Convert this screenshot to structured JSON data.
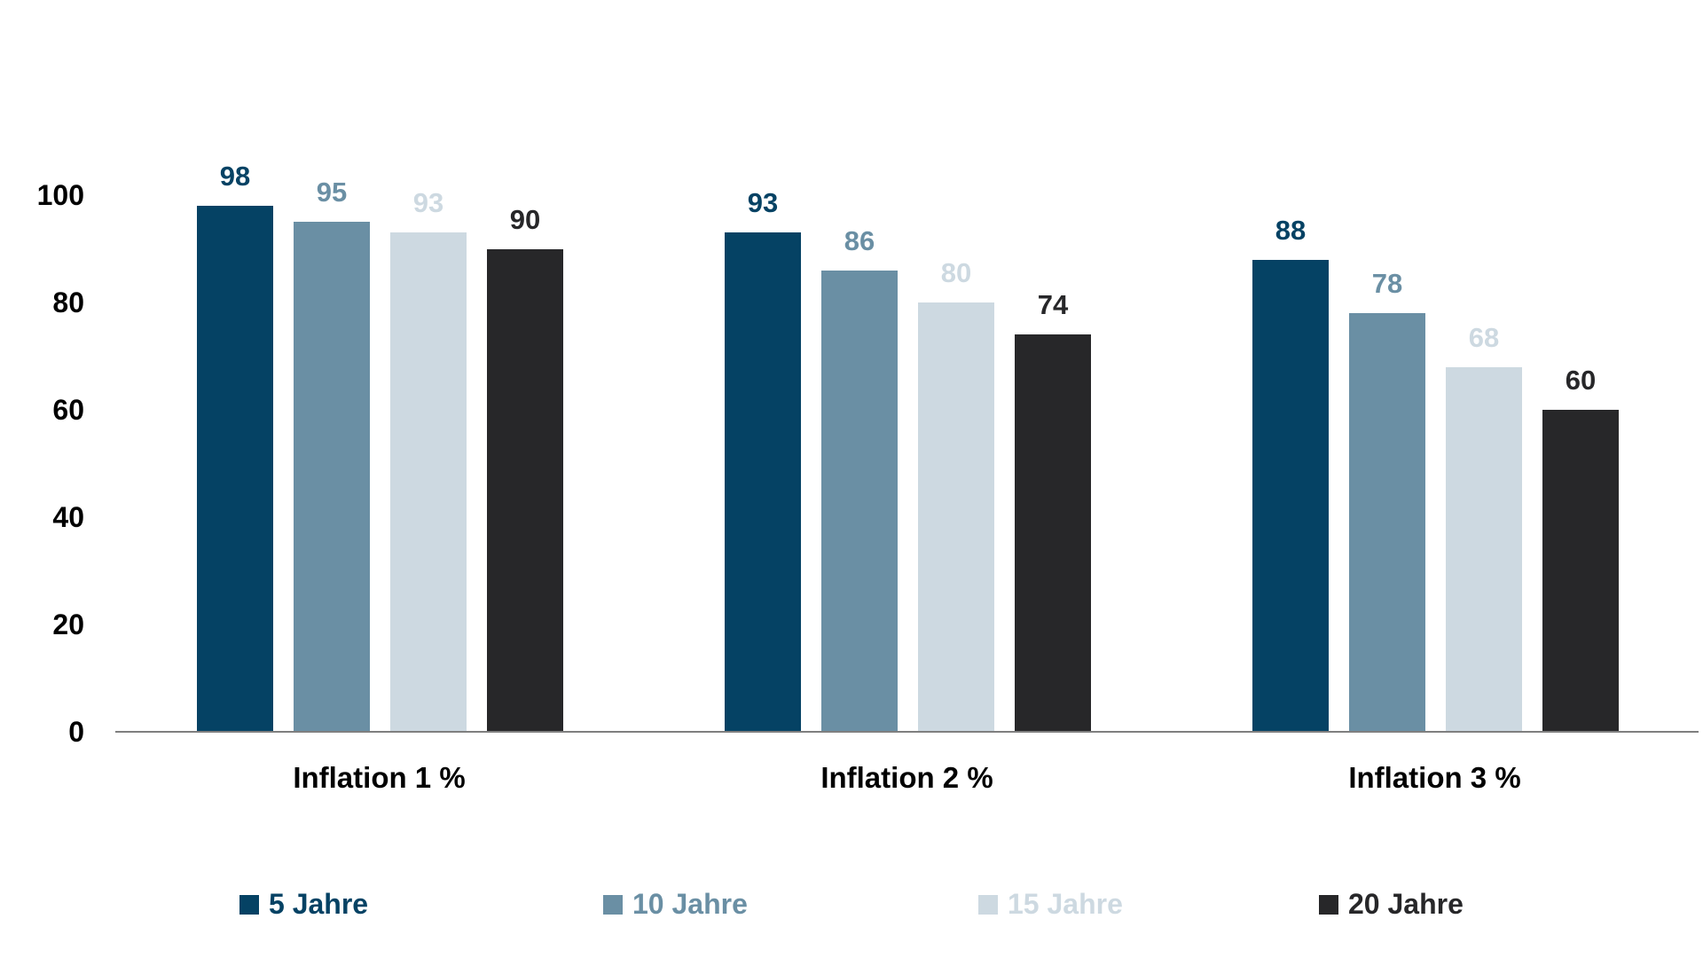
{
  "chart_data": {
    "type": "bar",
    "title": "",
    "xlabel": "",
    "ylabel": "",
    "categories": [
      "Inflation 1 %",
      "Inflation 2 %",
      "Inflation 3 %"
    ],
    "series": [
      {
        "name": "5 Jahre",
        "color": "#054264",
        "values": [
          98,
          93,
          88
        ]
      },
      {
        "name": "10 Jahre",
        "color": "#6A8FA4",
        "values": [
          95,
          86,
          78
        ]
      },
      {
        "name": "15 Jahre",
        "color": "#CDD9E1",
        "values": [
          93,
          80,
          68
        ]
      },
      {
        "name": "20 Jahre",
        "color": "#272729",
        "values": [
          90,
          74,
          60
        ]
      }
    ],
    "ylim": [
      0,
      100
    ],
    "yticks": [
      0,
      20,
      40,
      60,
      80,
      100
    ],
    "grid": false,
    "data_labels": true,
    "legend_position": "bottom",
    "axis_line_color": "#7f7f7f"
  }
}
